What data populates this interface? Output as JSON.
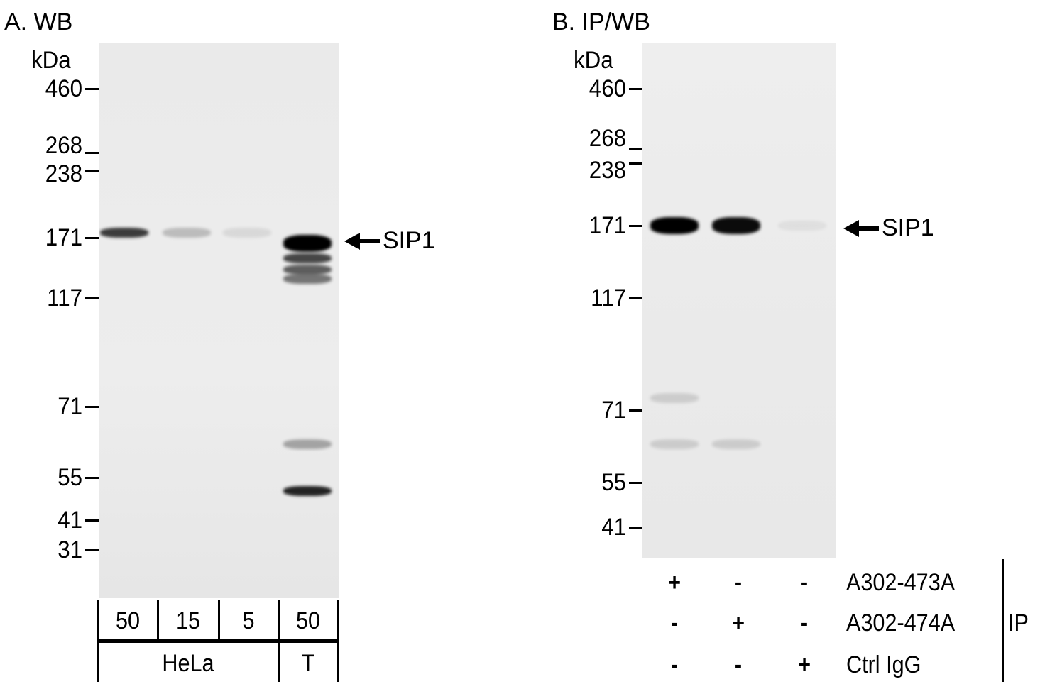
{
  "panelA": {
    "title": "A. WB",
    "unit": "kDa",
    "markers": [
      "460",
      "268",
      "238",
      "171",
      "117",
      "71",
      "55",
      "41",
      "31"
    ],
    "target_label": "SIP1",
    "loads": [
      "50",
      "15",
      "5",
      "50"
    ],
    "cell_lines": [
      "HeLa",
      "T"
    ],
    "bands": [
      {
        "lane": 0,
        "kDa": 175,
        "intensity": 0.75
      },
      {
        "lane": 1,
        "kDa": 175,
        "intensity": 0.2
      },
      {
        "lane": 2,
        "kDa": 175,
        "intensity": 0.08
      },
      {
        "lane": 3,
        "kDa": 165,
        "intensity": 1.0
      },
      {
        "lane": 3,
        "kDa": 150,
        "intensity": 0.7
      },
      {
        "lane": 3,
        "kDa": 140,
        "intensity": 0.6
      },
      {
        "lane": 3,
        "kDa": 132,
        "intensity": 0.5
      },
      {
        "lane": 3,
        "kDa": 50,
        "intensity": 0.85
      },
      {
        "lane": 3,
        "kDa": 62,
        "intensity": 0.3
      }
    ]
  },
  "panelB": {
    "title": "B. IP/WB",
    "unit": "kDa",
    "markers": [
      "460",
      "268",
      "238",
      "171",
      "117",
      "71",
      "55",
      "41"
    ],
    "target_label": "SIP1",
    "rows": [
      {
        "label": "A302-473A",
        "signs": [
          "+",
          "-",
          "-"
        ]
      },
      {
        "label": "A302-474A",
        "signs": [
          "-",
          "+",
          "-"
        ]
      },
      {
        "label": "Ctrl IgG",
        "signs": [
          "-",
          "-",
          "+"
        ]
      }
    ],
    "group_label": "IP",
    "bands": [
      {
        "lane": 0,
        "kDa": 171,
        "intensity": 1.0
      },
      {
        "lane": 1,
        "kDa": 171,
        "intensity": 0.95
      },
      {
        "lane": 2,
        "kDa": 171,
        "intensity": 0.05
      },
      {
        "lane": 0,
        "kDa": 75,
        "intensity": 0.12
      },
      {
        "lane": 0,
        "kDa": 63,
        "intensity": 0.12
      },
      {
        "lane": 1,
        "kDa": 63,
        "intensity": 0.12
      }
    ]
  }
}
